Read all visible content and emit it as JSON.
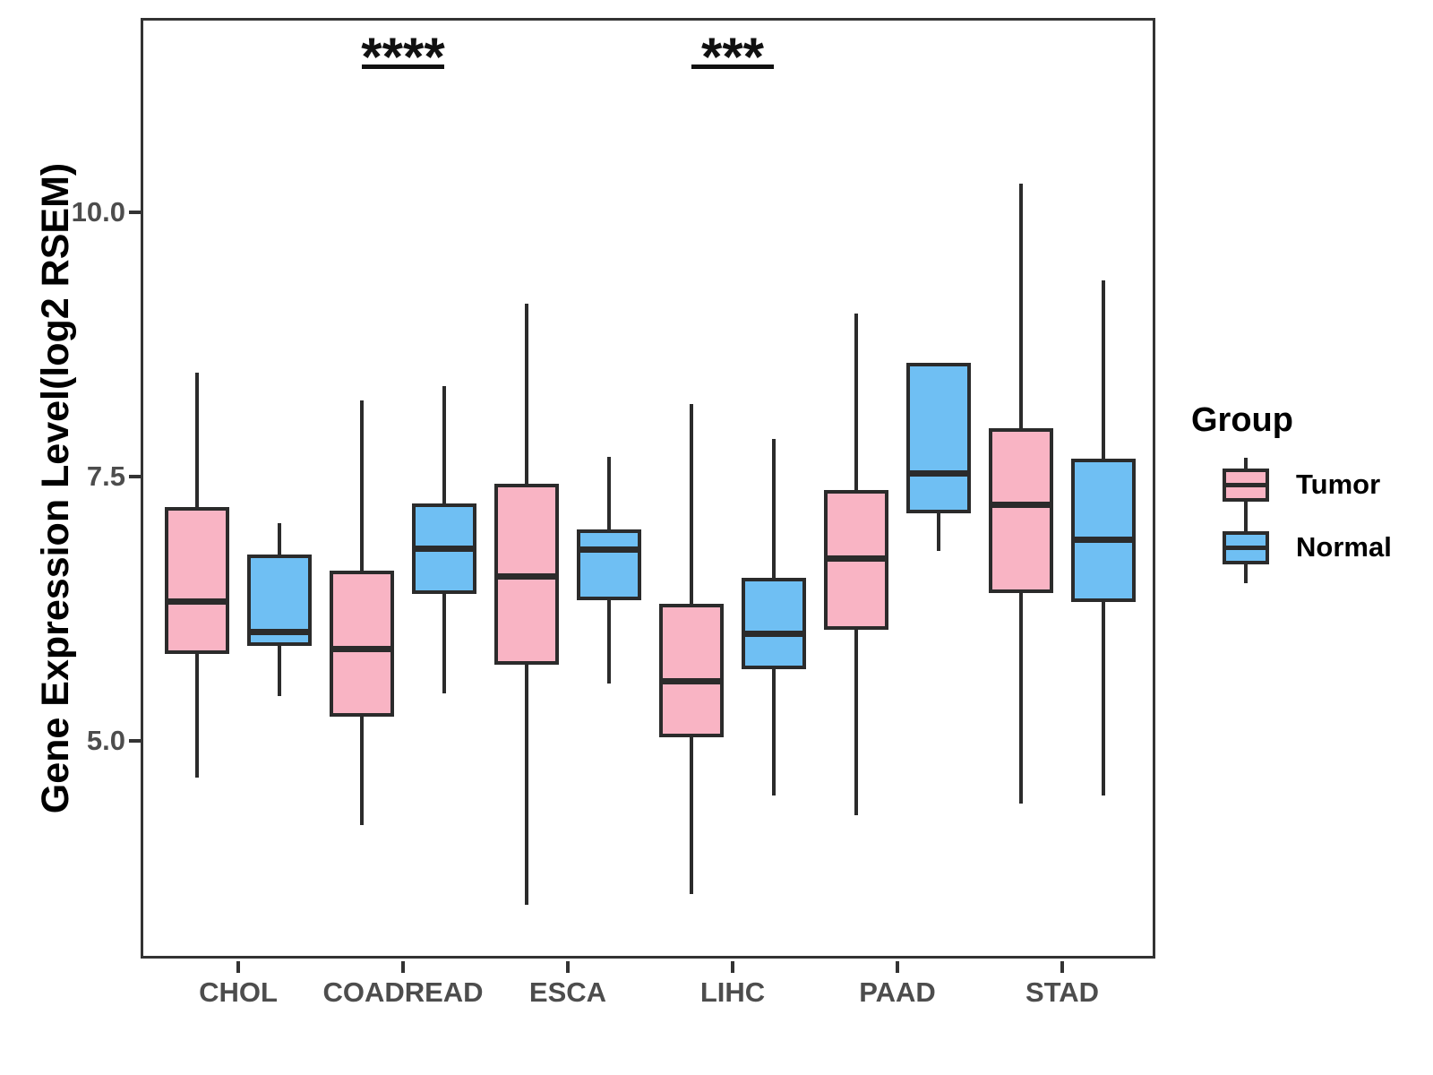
{
  "chart_data": {
    "type": "box",
    "title": "",
    "xlabel": "",
    "ylabel": "Gene Expression Level(log2 RSEM)",
    "categories": [
      "CHOL",
      "COADREAD",
      "ESCA",
      "LIHC",
      "PAAD",
      "STAD"
    ],
    "groups": [
      {
        "name": "Tumor",
        "color": "#F9B4C4"
      },
      {
        "name": "Normal",
        "color": "#6FBFF3"
      }
    ],
    "legend": {
      "title": "Group",
      "position": "right"
    },
    "ylim": [
      2.94,
      11.84
    ],
    "yticks": {
      "values": [
        10.0,
        7.5,
        5.0
      ],
      "labels": [
        "10.0",
        "7.5",
        "5.0"
      ]
    },
    "grid": "off",
    "line_color": "#2b2b2b",
    "panel_border_color": "#333333",
    "series": [
      {
        "name": "Tumor",
        "boxes": [
          {
            "category": "CHOL",
            "low": 4.65,
            "q1": 5.82,
            "median": 6.32,
            "q3": 7.21,
            "high": 8.48
          },
          {
            "category": "COADREAD",
            "low": 4.2,
            "q1": 5.23,
            "median": 5.87,
            "q3": 6.61,
            "high": 8.22
          },
          {
            "category": "ESCA",
            "low": 3.45,
            "q1": 5.72,
            "median": 6.56,
            "q3": 7.43,
            "high": 9.14
          },
          {
            "category": "LIHC",
            "low": 3.55,
            "q1": 5.03,
            "median": 5.57,
            "q3": 6.3,
            "high": 8.19
          },
          {
            "category": "PAAD",
            "low": 4.3,
            "q1": 6.05,
            "median": 6.73,
            "q3": 7.37,
            "high": 9.04
          },
          {
            "category": "STAD",
            "low": 4.41,
            "q1": 6.4,
            "median": 7.24,
            "q3": 7.96,
            "high": 10.27
          }
        ]
      },
      {
        "name": "Normal",
        "boxes": [
          {
            "category": "CHOL",
            "low": 5.42,
            "q1": 5.9,
            "median": 6.03,
            "q3": 6.76,
            "high": 7.06
          },
          {
            "category": "COADREAD",
            "low": 5.45,
            "q1": 6.39,
            "median": 6.82,
            "q3": 7.25,
            "high": 8.36
          },
          {
            "category": "ESCA",
            "low": 5.54,
            "q1": 6.33,
            "median": 6.81,
            "q3": 7.0,
            "high": 7.69
          },
          {
            "category": "LIHC",
            "low": 4.48,
            "q1": 5.68,
            "median": 6.02,
            "q3": 6.54,
            "high": 7.86
          },
          {
            "category": "PAAD",
            "low": 6.8,
            "q1": 7.15,
            "median": 7.53,
            "q3": 8.58,
            "high": 8.58
          },
          {
            "category": "STAD",
            "low": 4.48,
            "q1": 6.31,
            "median": 6.91,
            "q3": 7.67,
            "high": 9.36
          }
        ]
      }
    ],
    "annotations": [
      {
        "text": "****",
        "category": "COADREAD",
        "category_index": 1,
        "y": 11.4
      },
      {
        "text": "***",
        "category": "LIHC",
        "category_index": 3,
        "y": 11.4
      }
    ]
  }
}
